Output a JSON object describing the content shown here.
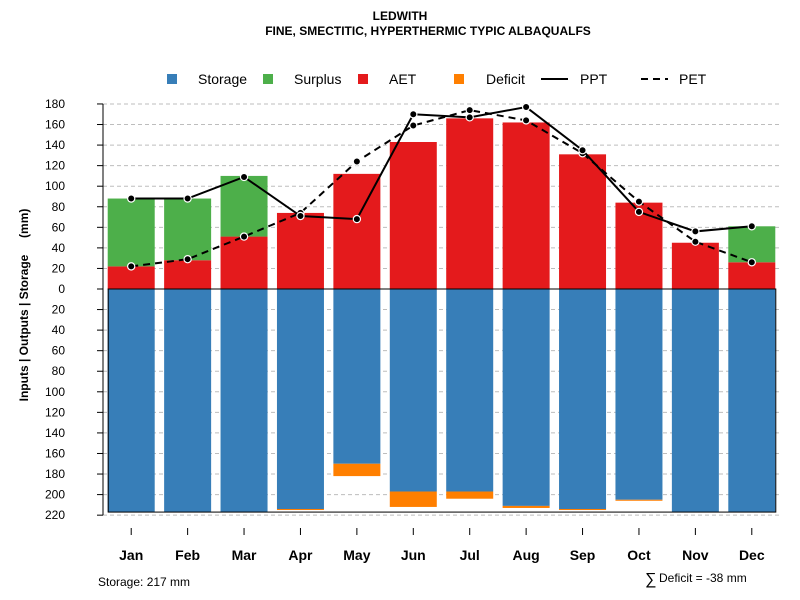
{
  "chart_data": {
    "type": "bar",
    "title": "LEDWITH",
    "subtitle": "FINE, SMECTITIC, HYPERTHERMIC TYPIC ALBAQUALFS",
    "ylabel": "Inputs | Outputs | Storage     (mm)",
    "xlabel": "",
    "ylim": [
      -220,
      180
    ],
    "y_ticks": [
      180,
      160,
      140,
      120,
      100,
      80,
      60,
      40,
      20,
      0,
      -20,
      -40,
      -60,
      -80,
      -100,
      -120,
      -140,
      -160,
      -180,
      -200,
      -220
    ],
    "y_tick_labels": [
      "180",
      "160",
      "140",
      "120",
      "100",
      "80",
      "60",
      "40",
      "20",
      "0",
      "20",
      "40",
      "60",
      "80",
      "100",
      "120",
      "140",
      "160",
      "180",
      "200",
      "220"
    ],
    "grid": true,
    "legend_position": "top",
    "categories": [
      "Jan",
      "Feb",
      "Mar",
      "Apr",
      "May",
      "Jun",
      "Jul",
      "Aug",
      "Sep",
      "Oct",
      "Nov",
      "Dec"
    ],
    "series": [
      {
        "name": "Storage",
        "color": "#377EB8",
        "values": [
          217,
          217,
          217,
          214,
          170,
          197,
          197,
          211,
          214,
          205,
          217,
          217
        ]
      },
      {
        "name": "Surplus",
        "color": "#4DAF4A",
        "values": [
          66,
          60,
          59,
          0,
          0,
          0,
          0,
          0,
          0,
          0,
          0,
          35
        ]
      },
      {
        "name": "AET",
        "color": "#E41A1C",
        "values": [
          22,
          28,
          51,
          74,
          112,
          143,
          166,
          162,
          131,
          84,
          45,
          26
        ]
      },
      {
        "name": "Deficit",
        "color": "#FF7F00",
        "values": [
          0,
          0,
          0,
          1,
          12,
          15,
          7,
          2,
          1,
          1,
          0,
          0
        ]
      },
      {
        "name": "PPT",
        "color": "#000000",
        "style": "solid",
        "values": [
          88,
          88,
          109,
          71,
          68,
          170,
          167,
          177,
          135,
          75,
          56,
          61
        ]
      },
      {
        "name": "PET",
        "color": "#000000",
        "style": "dashed",
        "values": [
          22,
          29,
          51,
          74,
          124,
          159,
          174,
          164,
          132,
          85,
          46,
          26
        ]
      }
    ],
    "annotations": {
      "storage": "Storage: 217 mm",
      "deficit_symbol": "∑",
      "deficit": "Deficit = -38 mm"
    }
  }
}
